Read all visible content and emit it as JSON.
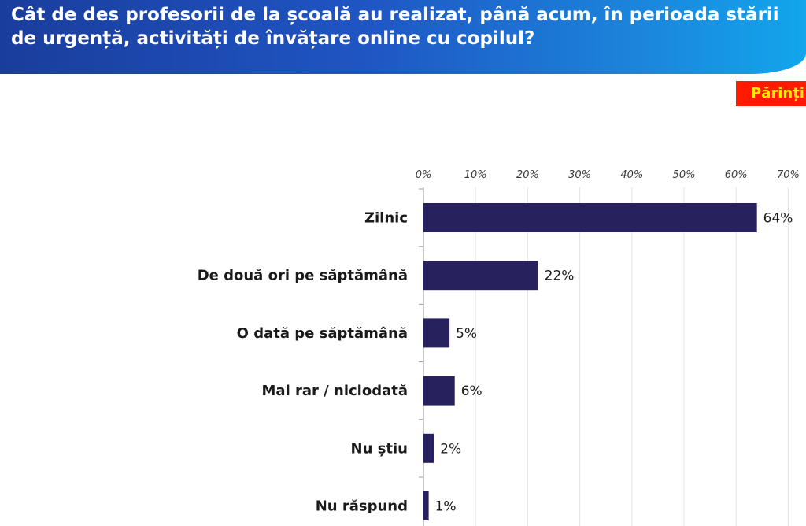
{
  "header": {
    "title": "Cât de des profesorii de la școală au realizat, până acum, în perioada stării de urgență, activități de învățare online cu copilul?"
  },
  "badge": {
    "label": "Părinți"
  },
  "colors": {
    "bar": "#27225e",
    "header_start": "#1a3d9c",
    "header_end": "#12a6ec",
    "badge_bg": "#ff1a00",
    "badge_text": "#ffea00"
  },
  "chart_data": {
    "type": "bar",
    "orientation": "horizontal",
    "title": "",
    "xlabel": "",
    "ylabel": "",
    "xlim": [
      0,
      70
    ],
    "ticks": [
      0,
      10,
      20,
      30,
      40,
      50,
      60,
      70
    ],
    "tick_labels": [
      "0%",
      "10%",
      "20%",
      "30%",
      "40%",
      "50%",
      "60%",
      "70%"
    ],
    "tick_position": "top",
    "grid": true,
    "categories": [
      "Zilnic",
      "De două ori pe săptămână",
      "O dată pe săptămână",
      "Mai rar / niciodată",
      "Nu știu",
      "Nu răspund"
    ],
    "values": [
      64,
      22,
      5,
      6,
      2,
      1
    ],
    "value_labels": [
      "64%",
      "22%",
      "5%",
      "6%",
      "2%",
      "1%"
    ]
  }
}
